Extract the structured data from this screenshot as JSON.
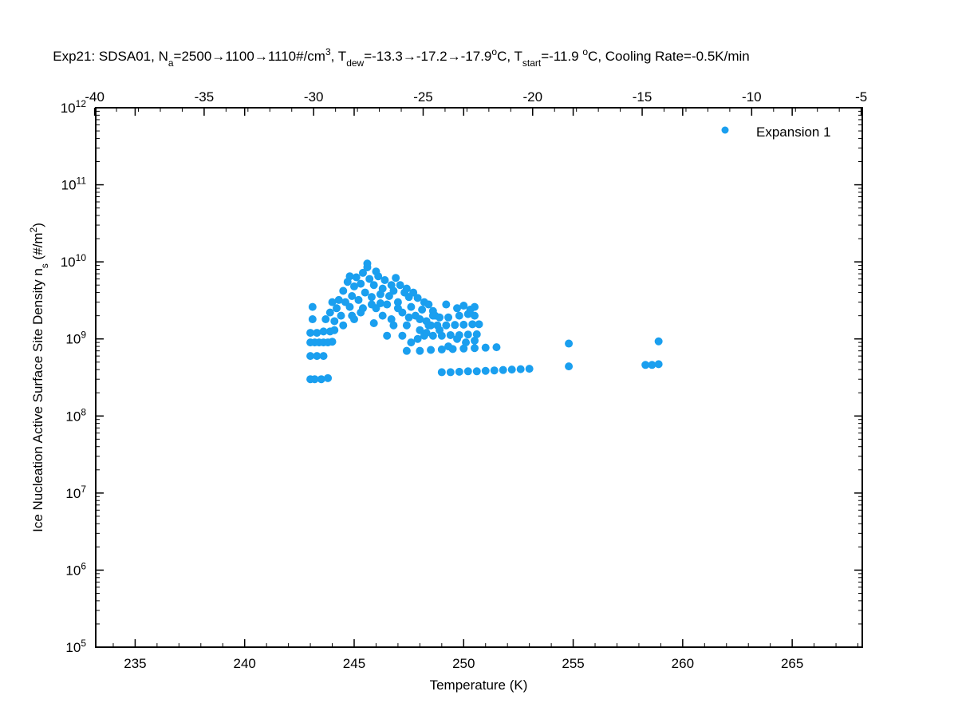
{
  "chart_data": {
    "type": "scatter",
    "title": {
      "parts": [
        {
          "t": "Exp21:  SDSA01,  N"
        },
        {
          "t": "a",
          "sub": true
        },
        {
          "t": "=2500→1100→1110#/cm"
        },
        {
          "t": "3",
          "sup": true
        },
        {
          "t": ",  T"
        },
        {
          "t": "dew",
          "sub": true
        },
        {
          "t": "=-13.3→-17.2→-17.9"
        },
        {
          "t": "o",
          "sup": true
        },
        {
          "t": "C,  T"
        },
        {
          "t": "start",
          "sub": true
        },
        {
          "t": "=-11.9 "
        },
        {
          "t": "o",
          "sup": true
        },
        {
          "t": "C,  Cooling Rate=-0.5K/min"
        }
      ]
    },
    "xlabel": "Temperature (K)",
    "ylabel": {
      "parts": [
        {
          "t": "Ice Nucleation Active Surface Site Density n"
        },
        {
          "t": "s",
          "sub": true
        },
        {
          "t": " (#/m"
        },
        {
          "t": "2",
          "sup": true
        },
        {
          "t": ")"
        }
      ]
    },
    "xlim": [
      233.2,
      268.2
    ],
    "ylim": [
      100000,
      1000000000000
    ],
    "yscale": "log",
    "x_ticks": [
      235,
      240,
      245,
      250,
      255,
      260,
      265
    ],
    "x_tick_labels": [
      "235",
      "240",
      "245",
      "250",
      "255",
      "260",
      "265"
    ],
    "y_ticks": [
      100000,
      1000000,
      10000000,
      100000000,
      1000000000,
      10000000000,
      100000000000,
      1000000000000
    ],
    "y_tick_labels": [
      {
        "base": "10",
        "exp": "5"
      },
      {
        "base": "10",
        "exp": "6"
      },
      {
        "base": "10",
        "exp": "7"
      },
      {
        "base": "10",
        "exp": "8"
      },
      {
        "base": "10",
        "exp": "9"
      },
      {
        "base": "10",
        "exp": "10"
      },
      {
        "base": "10",
        "exp": "11"
      },
      {
        "base": "10",
        "exp": "12"
      }
    ],
    "top_axis": {
      "unit": "celsius",
      "ticks": [
        -40,
        -35,
        -30,
        -25,
        -20,
        -15,
        -10,
        -5
      ],
      "tick_labels": [
        "-40",
        "-35",
        "-30",
        "-25",
        "-20",
        "-15",
        "-10",
        "-5"
      ]
    },
    "grid": false,
    "legend_position": "top-right",
    "marker_color": "#1a9fef",
    "series": [
      {
        "name": "Expansion 1",
        "color": "#1a9fef",
        "points": [
          [
            243.0,
            300000000.0
          ],
          [
            243.2,
            300000000.0
          ],
          [
            243.5,
            300000000.0
          ],
          [
            243.8,
            310000000.0
          ],
          [
            243.0,
            600000000.0
          ],
          [
            243.3,
            600000000.0
          ],
          [
            243.6,
            600000000.0
          ],
          [
            243.0,
            900000000.0
          ],
          [
            243.2,
            900000000.0
          ],
          [
            243.4,
            900000000.0
          ],
          [
            243.6,
            900000000.0
          ],
          [
            243.8,
            900000000.0
          ],
          [
            244.0,
            920000000.0
          ],
          [
            243.0,
            1200000000.0
          ],
          [
            243.3,
            1200000000.0
          ],
          [
            243.6,
            1250000000.0
          ],
          [
            243.9,
            1250000000.0
          ],
          [
            244.1,
            1300000000.0
          ],
          [
            243.1,
            1800000000.0
          ],
          [
            243.1,
            2600000000.0
          ],
          [
            243.7,
            1800000000.0
          ],
          [
            243.9,
            2200000000.0
          ],
          [
            244.1,
            1700000000.0
          ],
          [
            244.2,
            2500000000.0
          ],
          [
            244.3,
            3200000000.0
          ],
          [
            244.4,
            2000000000.0
          ],
          [
            244.5,
            4200000000.0
          ],
          [
            244.6,
            3000000000.0
          ],
          [
            244.7,
            5500000000.0
          ],
          [
            244.8,
            2600000000.0
          ],
          [
            244.9,
            3600000000.0
          ],
          [
            245.0,
            4800000000.0
          ],
          [
            245.1,
            6300000000.0
          ],
          [
            245.2,
            3200000000.0
          ],
          [
            245.3,
            5200000000.0
          ],
          [
            245.4,
            7200000000.0
          ],
          [
            245.5,
            4000000000.0
          ],
          [
            245.6,
            8500000000.0
          ],
          [
            245.7,
            6000000000.0
          ],
          [
            245.8,
            3500000000.0
          ],
          [
            245.9,
            5000000000.0
          ],
          [
            246.0,
            2500000000.0
          ],
          [
            246.1,
            6500000000.0
          ],
          [
            246.2,
            3800000000.0
          ],
          [
            246.3,
            4500000000.0
          ],
          [
            246.4,
            5800000000.0
          ],
          [
            246.5,
            2800000000.0
          ],
          [
            246.6,
            3600000000.0
          ],
          [
            246.7,
            1800000000.0
          ],
          [
            246.8,
            4200000000.0
          ],
          [
            246.9,
            6200000000.0
          ],
          [
            247.0,
            3000000000.0
          ],
          [
            247.1,
            5000000000.0
          ],
          [
            247.2,
            2200000000.0
          ],
          [
            247.3,
            4000000000.0
          ],
          [
            247.4,
            1500000000.0
          ],
          [
            247.5,
            3500000000.0
          ],
          [
            247.6,
            2600000000.0
          ],
          [
            247.7,
            4000000000.0
          ],
          [
            247.8,
            2000000000.0
          ],
          [
            247.9,
            3400000000.0
          ],
          [
            248.0,
            1300000000.0
          ],
          [
            248.1,
            2400000000.0
          ],
          [
            248.2,
            3000000000.0
          ],
          [
            248.3,
            1700000000.0
          ],
          [
            248.4,
            2800000000.0
          ],
          [
            248.5,
            1500000000.0
          ],
          [
            248.6,
            2300000000.0
          ],
          [
            248.7,
            2000000000.0
          ],
          [
            244.5,
            1500000000.0
          ],
          [
            245.0,
            1800000000.0
          ],
          [
            245.3,
            2200000000.0
          ],
          [
            245.8,
            2800000000.0
          ],
          [
            246.3,
            2000000000.0
          ],
          [
            246.8,
            1500000000.0
          ],
          [
            247.2,
            1100000000.0
          ],
          [
            247.4,
            700000000.0
          ],
          [
            247.6,
            900000000.0
          ],
          [
            247.9,
            1000000000.0
          ],
          [
            244.0,
            3000000000.0
          ],
          [
            244.8,
            6500000000.0
          ],
          [
            245.6,
            9500000000.0
          ],
          [
            246.0,
            7500000000.0
          ],
          [
            246.7,
            5000000000.0
          ],
          [
            247.4,
            4500000000.0
          ],
          [
            244.9,
            2000000000.0
          ],
          [
            245.4,
            2500000000.0
          ],
          [
            246.2,
            2900000000.0
          ],
          [
            247.0,
            2500000000.0
          ],
          [
            248.0,
            1800000000.0
          ],
          [
            248.3,
            1200000000.0
          ],
          [
            247.5,
            1900000000.0
          ],
          [
            246.5,
            1100000000.0
          ],
          [
            245.9,
            1600000000.0
          ],
          [
            248.0,
            700000000.0
          ],
          [
            248.5,
            720000000.0
          ],
          [
            249.0,
            730000000.0
          ],
          [
            249.5,
            740000000.0
          ],
          [
            250.0,
            750000000.0
          ],
          [
            250.5,
            760000000.0
          ],
          [
            251.0,
            770000000.0
          ],
          [
            251.5,
            780000000.0
          ],
          [
            248.2,
            1100000000.0
          ],
          [
            248.6,
            1100000000.0
          ],
          [
            249.0,
            1100000000.0
          ],
          [
            249.4,
            1120000000.0
          ],
          [
            249.8,
            1120000000.0
          ],
          [
            250.2,
            1140000000.0
          ],
          [
            250.6,
            1150000000.0
          ],
          [
            248.4,
            1500000000.0
          ],
          [
            248.8,
            1500000000.0
          ],
          [
            249.2,
            1500000000.0
          ],
          [
            249.6,
            1520000000.0
          ],
          [
            250.0,
            1530000000.0
          ],
          [
            250.4,
            1550000000.0
          ],
          [
            250.7,
            1550000000.0
          ],
          [
            248.6,
            2000000000.0
          ],
          [
            248.9,
            1900000000.0
          ],
          [
            249.3,
            1900000000.0
          ],
          [
            249.8,
            2000000000.0
          ],
          [
            250.2,
            2100000000.0
          ],
          [
            250.5,
            2000000000.0
          ],
          [
            249.2,
            2800000000.0
          ],
          [
            249.7,
            2500000000.0
          ],
          [
            250.0,
            2700000000.0
          ],
          [
            250.3,
            2400000000.0
          ],
          [
            250.5,
            2600000000.0
          ],
          [
            248.9,
            1300000000.0
          ],
          [
            249.3,
            800000000.0
          ],
          [
            249.7,
            1000000000.0
          ],
          [
            250.1,
            900000000.0
          ],
          [
            250.5,
            950000000.0
          ],
          [
            249.0,
            370000000.0
          ],
          [
            249.4,
            370000000.0
          ],
          [
            249.8,
            375000000.0
          ],
          [
            250.2,
            380000000.0
          ],
          [
            250.6,
            380000000.0
          ],
          [
            251.0,
            385000000.0
          ],
          [
            251.4,
            390000000.0
          ],
          [
            251.8,
            395000000.0
          ],
          [
            252.2,
            400000000.0
          ],
          [
            252.6,
            405000000.0
          ],
          [
            253.0,
            410000000.0
          ],
          [
            254.8,
            440000000.0
          ],
          [
            254.8,
            870000000.0
          ],
          [
            258.3,
            460000000.0
          ],
          [
            258.6,
            460000000.0
          ],
          [
            258.9,
            470000000.0
          ],
          [
            258.9,
            930000000.0
          ]
        ]
      }
    ]
  }
}
